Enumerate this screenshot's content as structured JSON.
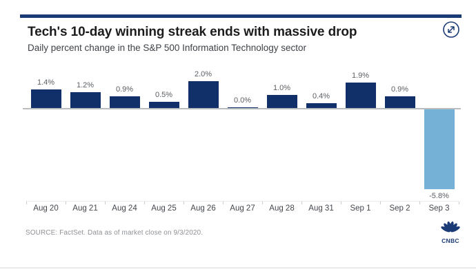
{
  "header": {
    "title": "Tech's 10-day winning streak ends with massive drop",
    "subtitle": "Daily percent change in the S&P 500 Information Technology sector"
  },
  "chart_data": {
    "type": "bar",
    "title": "Tech's 10-day winning streak ends with massive drop",
    "subtitle": "Daily percent change in the S&P 500 Information Technology sector",
    "xlabel": "",
    "ylabel": "",
    "categories": [
      "Aug 20",
      "Aug 21",
      "Aug 24",
      "Aug 25",
      "Aug 26",
      "Aug 27",
      "Aug 28",
      "Aug 31",
      "Sep 1",
      "Sep 2",
      "Sep 3"
    ],
    "values": [
      1.4,
      1.2,
      0.9,
      0.5,
      2.0,
      0.0,
      1.0,
      0.4,
      1.9,
      0.9,
      -5.8
    ],
    "labels": [
      "1.4%",
      "1.2%",
      "0.9%",
      "0.5%",
      "2.0%",
      "0.0%",
      "1.0%",
      "0.4%",
      "1.9%",
      "0.9%",
      "-5.8%"
    ],
    "ylim": [
      -6.5,
      2.5
    ],
    "grid": false,
    "legend": false,
    "bar_colors": {
      "positive": "#112f68",
      "negative": "#75b1d7"
    }
  },
  "footer": {
    "source": "SOURCE: FactSet. Data as of market close on 9/3/2020.",
    "brand": "CNBC"
  },
  "colors": {
    "accent_band": "#1a3b76",
    "bar_positive": "#112f68",
    "bar_negative": "#75b1d7",
    "baseline": "#b9bcbe",
    "value_label": "#5a5e63",
    "axis_label": "#43474d",
    "title": "#1c1c1e",
    "subtitle": "#3d4248",
    "source_text": "#8e9196",
    "brand_navy": "#1a3b76",
    "divider": "#d7d7d7"
  }
}
